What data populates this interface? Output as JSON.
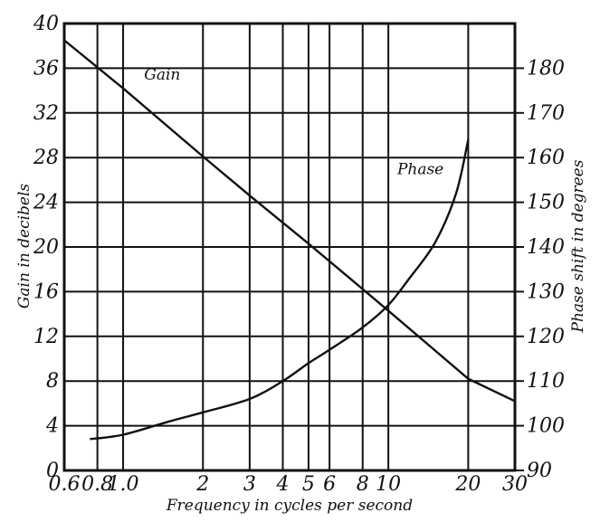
{
  "chart_data": {
    "type": "line",
    "xlabel": "Frequency in cycles per second",
    "ylabel": "Gain in decibels",
    "y2label": "Phase shift in degrees",
    "x_scale": "log",
    "xlim": [
      0.6,
      30
    ],
    "ylim": [
      0,
      40
    ],
    "y2lim": [
      90,
      190
    ],
    "grid": true,
    "x_ticks": [
      0.6,
      0.8,
      1.0,
      2,
      3,
      4,
      5,
      6,
      8,
      10,
      20,
      30
    ],
    "x_tick_labels": [
      "0.6",
      "0.8",
      "1.0",
      "2",
      "3",
      "4",
      "5",
      "6",
      "8",
      "10",
      "20",
      "30"
    ],
    "y_ticks": [
      0,
      4,
      8,
      12,
      16,
      20,
      24,
      28,
      32,
      36,
      40
    ],
    "y_tick_labels": [
      "0",
      "4",
      "8",
      "12",
      "16",
      "20",
      "24",
      "28",
      "32",
      "36",
      "40"
    ],
    "y2_ticks": [
      90,
      100,
      110,
      120,
      130,
      140,
      150,
      160,
      170,
      180
    ],
    "y2_tick_labels": [
      "90",
      "100",
      "110",
      "120",
      "130",
      "140",
      "150",
      "160",
      "170",
      "180"
    ],
    "series": [
      {
        "name": "Gain",
        "axis": "left",
        "x": [
          0.6,
          1.0,
          2,
          3,
          5,
          10,
          20,
          30
        ],
        "y": [
          38.5,
          34.2,
          28.1,
          24.6,
          20.3,
          14.3,
          8.2,
          6.2
        ]
      },
      {
        "name": "Phase",
        "axis": "right",
        "x": [
          0.75,
          1.0,
          1.5,
          2,
          3,
          4,
          5,
          6,
          8,
          10,
          12,
          15,
          18,
          20
        ],
        "y": [
          97,
          98,
          101,
          103,
          106,
          110,
          114,
          117,
          122,
          127,
          133,
          141,
          152,
          164
        ]
      }
    ],
    "annotations": [
      {
        "text": "Gain",
        "x": 1.2,
        "y": 35
      },
      {
        "text": "Phase",
        "x": 10.8,
        "y": 26.5
      }
    ]
  }
}
